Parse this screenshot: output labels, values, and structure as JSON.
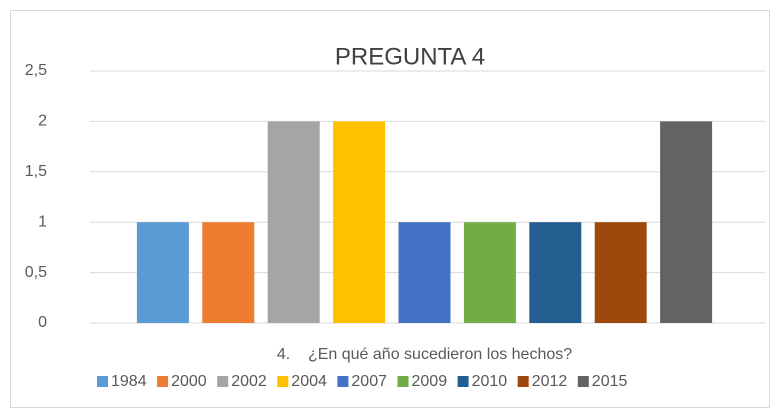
{
  "chart_data": {
    "type": "bar",
    "title": "PREGUNTA 4",
    "categories": [
      "4.    ¿En qué año sucedieron los hechos?"
    ],
    "series": [
      {
        "name": "1984",
        "color": "#5b9bd5",
        "values": [
          1
        ]
      },
      {
        "name": "2000",
        "color": "#ed7d31",
        "values": [
          1
        ]
      },
      {
        "name": "2002",
        "color": "#a5a5a5",
        "values": [
          2
        ]
      },
      {
        "name": "2004",
        "color": "#ffc000",
        "values": [
          2
        ]
      },
      {
        "name": "2007",
        "color": "#4472c4",
        "values": [
          1
        ]
      },
      {
        "name": "2009",
        "color": "#70ad47",
        "values": [
          1
        ]
      },
      {
        "name": "2010",
        "color": "#255e91",
        "values": [
          1
        ]
      },
      {
        "name": "2012",
        "color": "#9e480e",
        "values": [
          1
        ]
      },
      {
        "name": "2015",
        "color": "#636363",
        "values": [
          2
        ]
      }
    ],
    "ylim": [
      0,
      2.5
    ],
    "yticks": [
      0,
      {
        "value": 0.5,
        "label": "0,5"
      },
      1,
      {
        "value": 1.5,
        "label": "1,5"
      },
      2,
      {
        "value": 2.5,
        "label": "2,5"
      }
    ],
    "grid": true,
    "legend": "bottom"
  }
}
